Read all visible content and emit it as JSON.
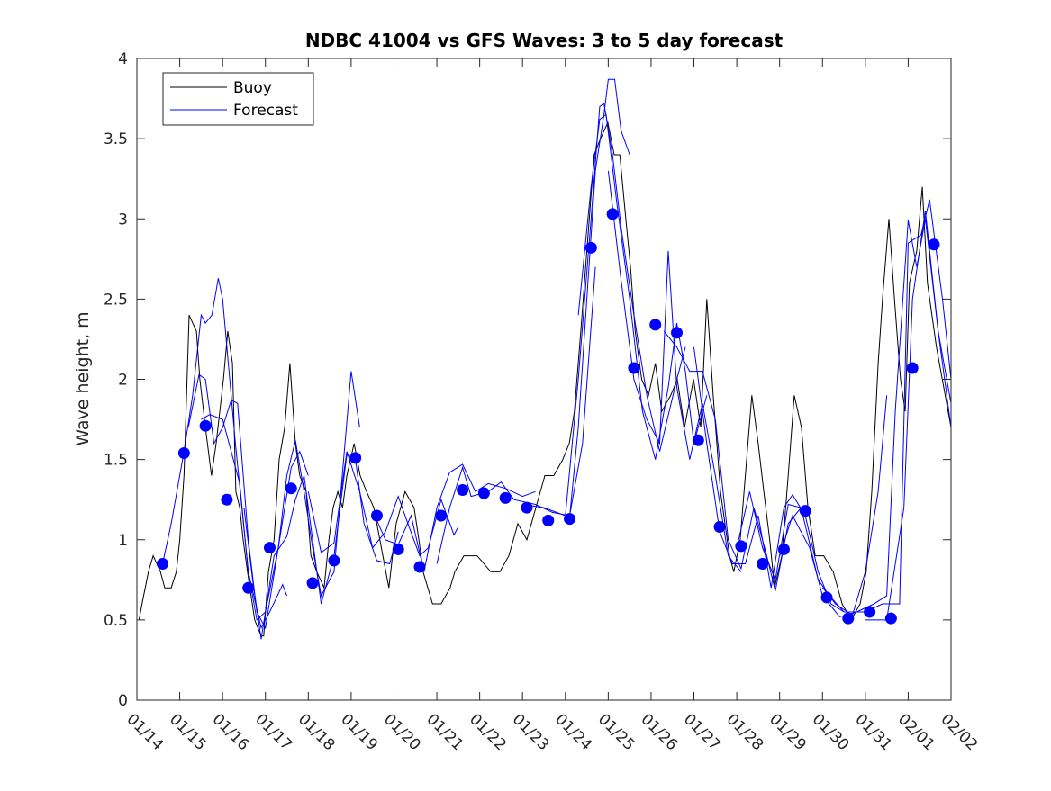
{
  "chart_data": {
    "type": "line",
    "title": "NDBC 41004 vs GFS Waves: 3 to 5 day forecast",
    "xlabel": "",
    "ylabel": "Wave height, m",
    "x_units": "days since 01/14",
    "xlim": [
      0,
      19
    ],
    "ylim": [
      0,
      4
    ],
    "x_tick_labels": [
      "01/14",
      "01/15",
      "01/16",
      "01/17",
      "01/18",
      "01/19",
      "01/20",
      "01/21",
      "01/22",
      "01/23",
      "01/24",
      "01/25",
      "01/26",
      "01/27",
      "01/28",
      "01/29",
      "01/30",
      "01/31",
      "02/01",
      "02/02"
    ],
    "y_ticks": [
      0,
      0.5,
      1,
      1.5,
      2,
      2.5,
      3,
      3.5,
      4
    ],
    "y_tick_labels": [
      "0",
      "0.5",
      "1",
      "1.5",
      "2",
      "2.5",
      "3",
      "3.5",
      "4"
    ],
    "grid": false,
    "legend": {
      "placement": "top-left",
      "entries": [
        {
          "label": "Buoy",
          "color": "#000000"
        },
        {
          "label": "Forecast",
          "color": "#0000ff"
        }
      ]
    },
    "buoy": [
      [
        0.05,
        0.5
      ],
      [
        0.12,
        0.6
      ],
      [
        0.27,
        0.8
      ],
      [
        0.38,
        0.9
      ],
      [
        0.55,
        0.8
      ],
      [
        0.65,
        0.7
      ],
      [
        0.8,
        0.7
      ],
      [
        0.92,
        0.8
      ],
      [
        1.0,
        1.0
      ],
      [
        1.1,
        1.4
      ],
      [
        1.22,
        2.4
      ],
      [
        1.39,
        2.3
      ],
      [
        1.47,
        2.0
      ],
      [
        1.6,
        1.7
      ],
      [
        1.74,
        1.4
      ],
      [
        1.85,
        1.6
      ],
      [
        2.02,
        2.0
      ],
      [
        2.12,
        2.3
      ],
      [
        2.23,
        2.1
      ],
      [
        2.31,
        1.3
      ],
      [
        2.4,
        1.2
      ],
      [
        2.48,
        1.0
      ],
      [
        2.58,
        0.8
      ],
      [
        2.75,
        0.5
      ],
      [
        2.9,
        0.4
      ],
      [
        2.96,
        0.4
      ],
      [
        3.07,
        0.8
      ],
      [
        3.2,
        1.0
      ],
      [
        3.32,
        1.5
      ],
      [
        3.45,
        1.7
      ],
      [
        3.57,
        2.1
      ],
      [
        3.7,
        1.6
      ],
      [
        3.8,
        1.4
      ],
      [
        3.95,
        1.3
      ],
      [
        4.06,
        0.9
      ],
      [
        4.2,
        0.8
      ],
      [
        4.37,
        0.7
      ],
      [
        4.48,
        1.0
      ],
      [
        4.58,
        1.2
      ],
      [
        4.69,
        1.3
      ],
      [
        4.8,
        1.2
      ],
      [
        4.9,
        1.4
      ],
      [
        5.07,
        1.6
      ],
      [
        5.21,
        1.4
      ],
      [
        5.36,
        1.3
      ],
      [
        5.53,
        1.2
      ],
      [
        5.74,
        0.9
      ],
      [
        5.88,
        0.7
      ],
      [
        6.05,
        1.1
      ],
      [
        6.26,
        1.3
      ],
      [
        6.47,
        1.2
      ],
      [
        6.58,
        1.0
      ],
      [
        6.68,
        0.8
      ],
      [
        6.9,
        0.6
      ],
      [
        7.1,
        0.6
      ],
      [
        7.31,
        0.7
      ],
      [
        7.42,
        0.8
      ],
      [
        7.63,
        0.9
      ],
      [
        7.94,
        0.9
      ],
      [
        8.26,
        0.8
      ],
      [
        8.47,
        0.8
      ],
      [
        8.68,
        0.9
      ],
      [
        8.89,
        1.1
      ],
      [
        9.1,
        1.0
      ],
      [
        9.31,
        1.2
      ],
      [
        9.52,
        1.4
      ],
      [
        9.73,
        1.4
      ],
      [
        9.94,
        1.5
      ],
      [
        10.09,
        1.6
      ],
      [
        10.21,
        1.8
      ],
      [
        10.36,
        2.3
      ],
      [
        10.5,
        2.8
      ],
      [
        10.67,
        3.4
      ],
      [
        10.82,
        3.5
      ],
      [
        10.99,
        3.6
      ],
      [
        11.14,
        3.4
      ],
      [
        11.27,
        3.4
      ],
      [
        11.41,
        3.0
      ],
      [
        11.52,
        2.7
      ],
      [
        11.63,
        2.3
      ],
      [
        11.78,
        2.0
      ],
      [
        11.94,
        1.9
      ],
      [
        12.1,
        2.1
      ],
      [
        12.25,
        1.8
      ],
      [
        12.46,
        1.9
      ],
      [
        12.61,
        2.0
      ],
      [
        12.78,
        1.7
      ],
      [
        12.99,
        2.0
      ],
      [
        13.16,
        1.7
      ],
      [
        13.3,
        2.5
      ],
      [
        13.45,
        1.9
      ],
      [
        13.62,
        1.3
      ],
      [
        13.83,
        0.9
      ],
      [
        13.93,
        0.8
      ],
      [
        14.08,
        1.0
      ],
      [
        14.2,
        1.4
      ],
      [
        14.35,
        1.9
      ],
      [
        14.5,
        1.6
      ],
      [
        14.63,
        1.3
      ],
      [
        14.77,
        1.0
      ],
      [
        14.88,
        0.7
      ],
      [
        15.05,
        0.9
      ],
      [
        15.2,
        1.4
      ],
      [
        15.34,
        1.9
      ],
      [
        15.51,
        1.7
      ],
      [
        15.66,
        1.2
      ],
      [
        15.83,
        0.9
      ],
      [
        16.03,
        0.9
      ],
      [
        16.25,
        0.8
      ],
      [
        16.46,
        0.6
      ],
      [
        16.67,
        0.5
      ],
      [
        16.88,
        0.6
      ],
      [
        17.02,
        0.8
      ],
      [
        17.15,
        1.3
      ],
      [
        17.3,
        2.1
      ],
      [
        17.4,
        2.5
      ],
      [
        17.55,
        3.0
      ],
      [
        17.68,
        2.5
      ],
      [
        17.82,
        2.0
      ],
      [
        17.93,
        1.8
      ],
      [
        18.03,
        2.6
      ],
      [
        18.2,
        2.8
      ],
      [
        18.33,
        3.2
      ],
      [
        18.45,
        2.6
      ],
      [
        18.66,
        2.2
      ],
      [
        19.0,
        1.7
      ]
    ],
    "forecast_segments": [
      [
        [
          0.6,
          0.85
        ],
        [
          0.8,
          1.1
        ],
        [
          1.1,
          1.55
        ],
        [
          1.3,
          1.9
        ],
        [
          1.5,
          2.4
        ],
        [
          1.6,
          2.35
        ],
        [
          1.75,
          2.4
        ],
        [
          1.9,
          2.63
        ],
        [
          2.0,
          2.5
        ],
        [
          2.3,
          1.6
        ],
        [
          2.6,
          0.8
        ],
        [
          2.9,
          0.45
        ],
        [
          3.1,
          0.55
        ],
        [
          3.4,
          0.72
        ],
        [
          3.5,
          0.65
        ]
      ],
      [
        [
          1.2,
          1.7
        ],
        [
          1.45,
          2.03
        ],
        [
          1.6,
          2.0
        ],
        [
          1.8,
          1.6
        ],
        [
          2.0,
          1.7
        ],
        [
          2.2,
          1.87
        ],
        [
          2.35,
          1.85
        ],
        [
          2.6,
          1.0
        ],
        [
          2.8,
          0.55
        ],
        [
          3.0,
          0.45
        ],
        [
          3.3,
          0.95
        ],
        [
          3.6,
          1.45
        ],
        [
          3.8,
          1.55
        ],
        [
          4.0,
          1.4
        ]
      ],
      [
        [
          1.5,
          1.75
        ],
        [
          1.7,
          1.78
        ],
        [
          2.0,
          1.75
        ],
        [
          2.2,
          1.55
        ],
        [
          2.4,
          1.35
        ],
        [
          2.6,
          0.8
        ],
        [
          2.8,
          0.5
        ],
        [
          3.0,
          0.55
        ],
        [
          3.3,
          0.95
        ],
        [
          3.5,
          1.4
        ],
        [
          3.7,
          1.62
        ],
        [
          3.9,
          1.3
        ],
        [
          4.1,
          0.95
        ],
        [
          4.3,
          0.65
        ],
        [
          4.6,
          0.8
        ],
        [
          5.0,
          2.05
        ],
        [
          5.2,
          1.7
        ]
      ],
      [
        [
          2.5,
          1.2
        ],
        [
          2.7,
          0.75
        ],
        [
          2.9,
          0.38
        ],
        [
          3.2,
          0.9
        ],
        [
          3.5,
          1.02
        ],
        [
          3.7,
          1.25
        ],
        [
          3.9,
          1.4
        ],
        [
          4.1,
          1.0
        ],
        [
          4.3,
          0.6
        ],
        [
          4.6,
          0.9
        ],
        [
          4.9,
          1.53
        ],
        [
          5.1,
          1.5
        ],
        [
          5.3,
          1.1
        ],
        [
          5.6,
          0.87
        ],
        [
          5.9,
          0.85
        ],
        [
          6.1,
          1.05
        ]
      ],
      [
        [
          4.0,
          1.3
        ],
        [
          4.3,
          0.92
        ],
        [
          4.6,
          0.98
        ],
        [
          4.9,
          1.55
        ],
        [
          5.2,
          1.3
        ],
        [
          5.5,
          0.95
        ],
        [
          5.8,
          1.05
        ],
        [
          6.1,
          1.27
        ],
        [
          6.3,
          1.12
        ],
        [
          6.6,
          0.9
        ],
        [
          6.8,
          0.95
        ],
        [
          7.1,
          1.25
        ],
        [
          7.4,
          1.03
        ],
        [
          7.5,
          1.08
        ]
      ],
      [
        [
          5.5,
          1.18
        ],
        [
          5.8,
          1.0
        ],
        [
          6.1,
          0.97
        ],
        [
          6.4,
          1.15
        ],
        [
          6.7,
          0.8
        ],
        [
          7.0,
          1.2
        ],
        [
          7.3,
          1.42
        ],
        [
          7.6,
          1.47
        ],
        [
          7.9,
          1.3
        ],
        [
          8.2,
          1.35
        ],
        [
          8.6,
          1.32
        ],
        [
          9.0,
          1.27
        ],
        [
          9.3,
          1.3
        ]
      ],
      [
        [
          7.0,
          0.85
        ],
        [
          7.3,
          1.2
        ],
        [
          7.6,
          1.45
        ],
        [
          7.8,
          1.27
        ],
        [
          8.2,
          1.3
        ],
        [
          8.5,
          1.36
        ],
        [
          8.8,
          1.25
        ],
        [
          9.3,
          1.22
        ],
        [
          9.7,
          1.17
        ],
        [
          10.1,
          1.15
        ],
        [
          10.4,
          1.6
        ],
        [
          10.7,
          2.7
        ]
      ],
      [
        [
          9.0,
          1.22
        ],
        [
          9.5,
          1.2
        ],
        [
          10.1,
          1.14
        ],
        [
          10.3,
          1.7
        ],
        [
          10.5,
          2.5
        ],
        [
          10.7,
          3.3
        ],
        [
          10.9,
          3.65
        ],
        [
          11.0,
          3.87
        ],
        [
          11.15,
          3.87
        ],
        [
          11.3,
          3.55
        ],
        [
          11.5,
          3.4
        ]
      ],
      [
        [
          10.0,
          1.15
        ],
        [
          10.3,
          2.0
        ],
        [
          10.6,
          3.0
        ],
        [
          10.8,
          3.7
        ],
        [
          10.9,
          3.72
        ],
        [
          11.1,
          3.4
        ],
        [
          11.3,
          2.95
        ],
        [
          11.6,
          2.4
        ],
        [
          11.9,
          1.9
        ],
        [
          12.2,
          1.55
        ],
        [
          12.6,
          2.0
        ],
        [
          12.8,
          2.2
        ]
      ],
      [
        [
          10.3,
          2.4
        ],
        [
          10.6,
          3.2
        ],
        [
          10.8,
          3.62
        ],
        [
          10.95,
          3.65
        ],
        [
          11.2,
          3.1
        ],
        [
          11.5,
          2.5
        ],
        [
          11.8,
          1.8
        ],
        [
          12.1,
          1.5
        ],
        [
          12.4,
          1.95
        ],
        [
          12.6,
          2.35
        ],
        [
          12.8,
          2.05
        ],
        [
          13.0,
          1.6
        ],
        [
          13.3,
          1.9
        ]
      ],
      [
        [
          11.0,
          3.3
        ],
        [
          11.3,
          2.62
        ],
        [
          11.6,
          2.0
        ],
        [
          11.9,
          1.75
        ],
        [
          12.2,
          1.6
        ],
        [
          12.4,
          2.8
        ],
        [
          12.6,
          1.95
        ],
        [
          12.9,
          1.5
        ],
        [
          13.2,
          1.85
        ],
        [
          13.5,
          1.4
        ],
        [
          13.8,
          0.9
        ],
        [
          14.1,
          0.8
        ]
      ],
      [
        [
          12.3,
          2.3
        ],
        [
          12.6,
          2.2
        ],
        [
          12.9,
          2.05
        ],
        [
          13.2,
          2.05
        ],
        [
          13.5,
          1.75
        ],
        [
          13.8,
          1.0
        ],
        [
          14.1,
          0.82
        ],
        [
          14.4,
          1.2
        ],
        [
          14.7,
          0.9
        ],
        [
          14.9,
          0.68
        ],
        [
          15.2,
          1.1
        ],
        [
          15.5,
          1.2
        ]
      ],
      [
        [
          13.0,
          2.2
        ],
        [
          13.3,
          1.6
        ],
        [
          13.6,
          1.05
        ],
        [
          13.9,
          0.85
        ],
        [
          14.2,
          0.85
        ],
        [
          14.5,
          1.15
        ],
        [
          14.8,
          0.7
        ],
        [
          15.1,
          1.2
        ],
        [
          15.3,
          1.28
        ],
        [
          15.6,
          1.15
        ],
        [
          15.9,
          0.8
        ],
        [
          16.2,
          0.6
        ],
        [
          16.5,
          0.55
        ]
      ],
      [
        [
          14.0,
          0.95
        ],
        [
          14.3,
          1.3
        ],
        [
          14.6,
          0.95
        ],
        [
          14.9,
          0.75
        ],
        [
          15.2,
          1.22
        ],
        [
          15.5,
          1.2
        ],
        [
          15.9,
          0.75
        ],
        [
          16.3,
          0.6
        ],
        [
          16.7,
          0.53
        ],
        [
          17.0,
          0.8
        ],
        [
          17.3,
          1.3
        ],
        [
          17.5,
          1.9
        ]
      ],
      [
        [
          15.0,
          0.9
        ],
        [
          15.3,
          1.15
        ],
        [
          15.7,
          0.95
        ],
        [
          16.0,
          0.65
        ],
        [
          16.4,
          0.52
        ],
        [
          16.8,
          0.55
        ],
        [
          17.2,
          0.6
        ],
        [
          17.5,
          0.65
        ],
        [
          17.7,
          1.8
        ],
        [
          18.0,
          2.99
        ],
        [
          18.2,
          2.7
        ],
        [
          18.4,
          3.0
        ],
        [
          18.7,
          2.3
        ],
        [
          19.0,
          1.85
        ]
      ],
      [
        [
          16.0,
          0.7
        ],
        [
          16.5,
          0.55
        ],
        [
          17.0,
          0.55
        ],
        [
          17.4,
          0.6
        ],
        [
          17.8,
          0.6
        ],
        [
          18.0,
          2.85
        ],
        [
          18.3,
          2.9
        ],
        [
          18.5,
          3.12
        ],
        [
          18.8,
          2.5
        ],
        [
          19.0,
          2.0
        ]
      ],
      [
        [
          17.0,
          0.5
        ],
        [
          17.5,
          0.5
        ],
        [
          17.9,
          1.2
        ],
        [
          18.1,
          2.5
        ],
        [
          18.4,
          3.05
        ],
        [
          18.7,
          2.3
        ],
        [
          19.0,
          1.7
        ]
      ]
    ],
    "forecast_points_start": 0.6,
    "forecast_points_step": 0.5,
    "forecast_points": [
      0.85,
      1.54,
      1.71,
      1.25,
      0.7,
      0.95,
      1.32,
      0.73,
      0.87,
      1.51,
      1.15,
      0.94,
      0.83,
      1.15,
      1.31,
      1.29,
      1.26,
      1.2,
      1.12,
      1.13,
      2.82,
      3.03,
      2.07,
      2.34,
      2.29,
      1.62,
      1.08,
      0.96,
      0.85,
      0.94,
      1.18,
      0.64,
      0.51,
      0.55,
      0.51,
      2.07,
      2.84
    ],
    "colors": {
      "buoy": "#000000",
      "forecast": "#0000ff",
      "axis": "#262626"
    }
  }
}
